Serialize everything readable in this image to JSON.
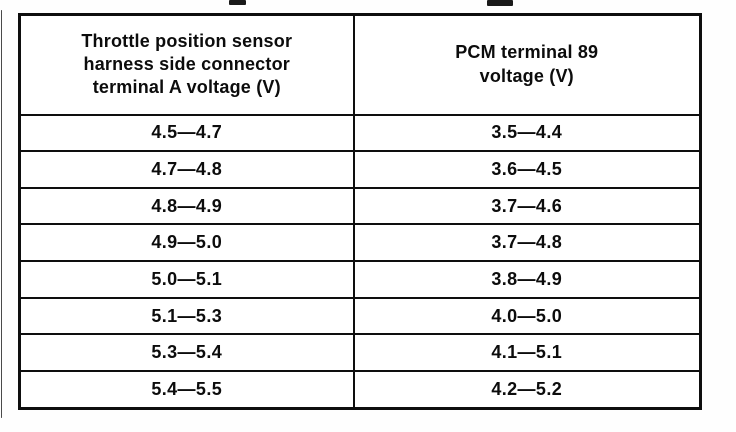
{
  "colors": {
    "ink": "#0c0c0c",
    "paper": "#ffffff"
  },
  "table": {
    "headers": [
      {
        "text": "Throttle position sensor harness side connector terminal A voltage (V)",
        "lines": [
          "Throttle position sensor",
          "harness side connector",
          "terminal A voltage (V)"
        ]
      },
      {
        "text": "PCM terminal 89 voltage (V)",
        "lines": [
          "PCM terminal 89",
          "voltage (V)"
        ]
      }
    ],
    "rows": [
      [
        "4.5—4.7",
        "3.5—4.4"
      ],
      [
        "4.7—4.8",
        "3.6—4.5"
      ],
      [
        "4.8—4.9",
        "3.7—4.6"
      ],
      [
        "4.9—5.0",
        "3.7—4.8"
      ],
      [
        "5.0—5.1",
        "3.8—4.9"
      ],
      [
        "5.1—5.3",
        "4.0—5.0"
      ],
      [
        "5.3—5.4",
        "4.1—5.1"
      ],
      [
        "5.4—5.5",
        "4.2—5.2"
      ]
    ]
  }
}
